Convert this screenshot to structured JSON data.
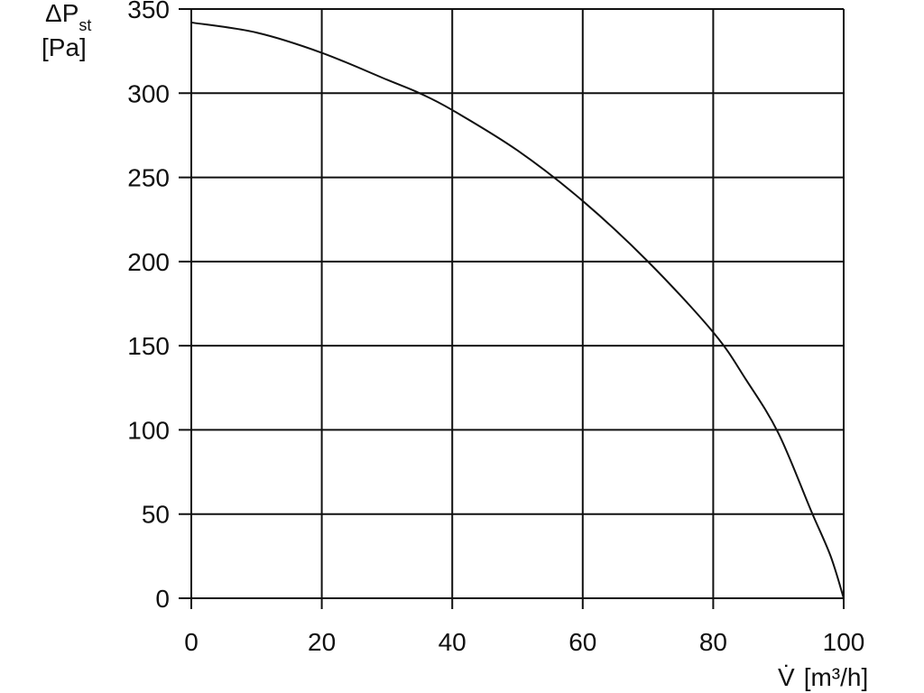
{
  "chart_data": {
    "type": "line",
    "ylabel": {
      "symbol": "ΔP",
      "subscript": "st",
      "unit": "[Pa]"
    },
    "xlabel": {
      "symbol": "V̇",
      "unit": "[m³/h]"
    },
    "xlim": [
      0,
      100
    ],
    "ylim": [
      0,
      350
    ],
    "x_ticks": [
      0,
      20,
      40,
      60,
      80,
      100
    ],
    "y_ticks": [
      0,
      50,
      100,
      150,
      200,
      250,
      300,
      350
    ],
    "grid": true,
    "colors": {
      "line": "#111111",
      "grid": "#111111",
      "text": "#111111"
    },
    "series": [
      {
        "x": [
          0,
          10,
          20,
          30,
          35,
          40,
          50,
          60,
          70,
          80,
          85,
          90,
          95,
          98,
          100
        ],
        "y": [
          342,
          336,
          324,
          308,
          300,
          290,
          266,
          236,
          200,
          158,
          130,
          98,
          52,
          25,
          0
        ]
      }
    ]
  }
}
